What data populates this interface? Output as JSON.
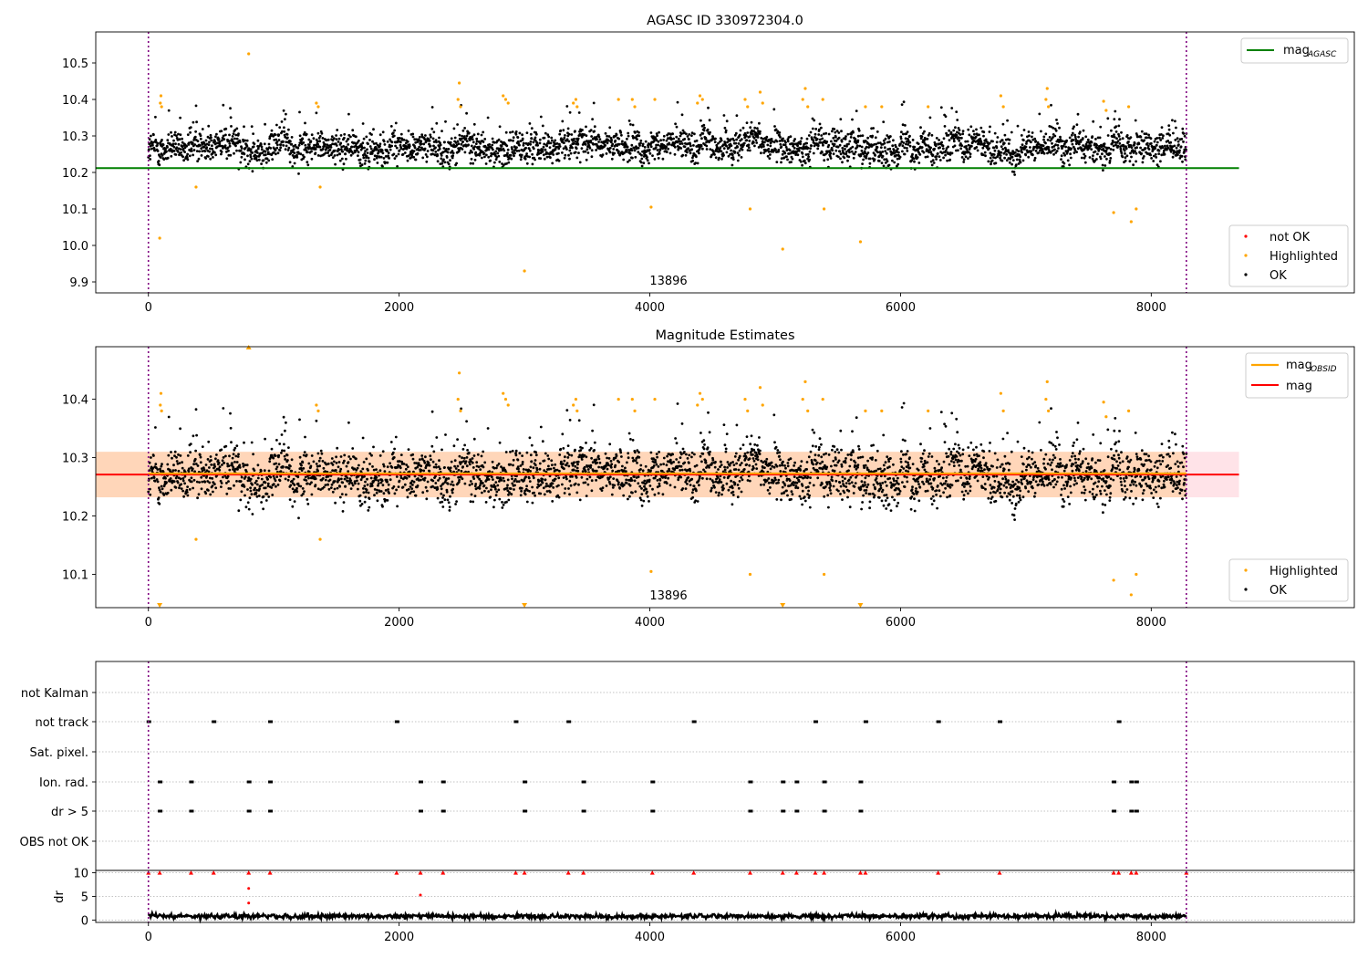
{
  "chart_data": [
    {
      "type": "scatter",
      "title": "AGASC ID 330972304.0",
      "xlabel": "",
      "ylabel": "",
      "xlim": [
        -420,
        9620
      ],
      "ylim": [
        9.87,
        10.585
      ],
      "x_ticks": [
        0,
        2000,
        4000,
        6000,
        8000
      ],
      "y_ticks": [
        9.9,
        10.0,
        10.1,
        10.2,
        10.3,
        10.4,
        10.5
      ],
      "obsid_label": "13896",
      "obsid_label_x": 4000,
      "obsid_boundaries": [
        0,
        8280
      ],
      "reference_lines": [
        {
          "name": "mag_AGASC",
          "value": 10.212,
          "x_range": [
            -420,
            8700
          ],
          "color": "#008000"
        }
      ],
      "legend_lines": [
        {
          "label": "mag",
          "subscript": "AGASC",
          "color": "#008000"
        }
      ],
      "legend_markers": [
        {
          "label": "not OK",
          "color": "#ff0000"
        },
        {
          "label": "Highlighted",
          "color": "#ffa500"
        },
        {
          "label": "OK",
          "color": "#000000"
        }
      ],
      "ok_series": {
        "name": "OK",
        "color": "#000000",
        "x_range": [
          0,
          8280
        ],
        "n_points": 3400,
        "center": 10.27,
        "spread": 0.03
      },
      "highlighted_points": [
        {
          "x": 90,
          "y": 10.02
        },
        {
          "x": 95,
          "y": 10.39
        },
        {
          "x": 100,
          "y": 10.41
        },
        {
          "x": 105,
          "y": 10.38
        },
        {
          "x": 380,
          "y": 10.16
        },
        {
          "x": 800,
          "y": 10.525
        },
        {
          "x": 1370,
          "y": 10.16
        },
        {
          "x": 1340,
          "y": 10.39
        },
        {
          "x": 1355,
          "y": 10.38
        },
        {
          "x": 2480,
          "y": 10.445
        },
        {
          "x": 2470,
          "y": 10.4
        },
        {
          "x": 2490,
          "y": 10.38
        },
        {
          "x": 2830,
          "y": 10.41
        },
        {
          "x": 2850,
          "y": 10.4
        },
        {
          "x": 2870,
          "y": 10.39
        },
        {
          "x": 3000,
          "y": 9.93
        },
        {
          "x": 3390,
          "y": 10.39
        },
        {
          "x": 3410,
          "y": 10.4
        },
        {
          "x": 3420,
          "y": 10.38
        },
        {
          "x": 3750,
          "y": 10.4
        },
        {
          "x": 3860,
          "y": 10.4
        },
        {
          "x": 3880,
          "y": 10.38
        },
        {
          "x": 4010,
          "y": 10.105
        },
        {
          "x": 4040,
          "y": 10.4
        },
        {
          "x": 4400,
          "y": 10.41
        },
        {
          "x": 4420,
          "y": 10.4
        },
        {
          "x": 4380,
          "y": 10.39
        },
        {
          "x": 4760,
          "y": 10.4
        },
        {
          "x": 4780,
          "y": 10.38
        },
        {
          "x": 4800,
          "y": 10.1
        },
        {
          "x": 4880,
          "y": 10.42
        },
        {
          "x": 4900,
          "y": 10.39
        },
        {
          "x": 5060,
          "y": 9.99
        },
        {
          "x": 5240,
          "y": 10.43
        },
        {
          "x": 5220,
          "y": 10.4
        },
        {
          "x": 5260,
          "y": 10.38
        },
        {
          "x": 5380,
          "y": 10.4
        },
        {
          "x": 5390,
          "y": 10.1
        },
        {
          "x": 5680,
          "y": 10.01
        },
        {
          "x": 5720,
          "y": 10.38
        },
        {
          "x": 5850,
          "y": 10.38
        },
        {
          "x": 6220,
          "y": 10.38
        },
        {
          "x": 6800,
          "y": 10.41
        },
        {
          "x": 6820,
          "y": 10.38
        },
        {
          "x": 7170,
          "y": 10.43
        },
        {
          "x": 7160,
          "y": 10.4
        },
        {
          "x": 7180,
          "y": 10.38
        },
        {
          "x": 7620,
          "y": 10.395
        },
        {
          "x": 7640,
          "y": 10.37
        },
        {
          "x": 7700,
          "y": 10.09
        },
        {
          "x": 7820,
          "y": 10.38
        },
        {
          "x": 7840,
          "y": 10.065
        },
        {
          "x": 7880,
          "y": 10.1
        }
      ]
    },
    {
      "type": "scatter",
      "title": "Magnitude Estimates",
      "xlabel": "",
      "ylabel": "",
      "xlim": [
        -420,
        9620
      ],
      "ylim": [
        10.043,
        10.49
      ],
      "x_ticks": [
        0,
        2000,
        4000,
        6000,
        8000
      ],
      "y_ticks": [
        10.1,
        10.2,
        10.3,
        10.4
      ],
      "obsid_label": "13896",
      "obsid_label_x": 4000,
      "obsid_boundaries": [
        0,
        8280
      ],
      "bands": [
        {
          "name": "mag range",
          "low": 10.232,
          "high": 10.31,
          "x_range": [
            -420,
            8700
          ],
          "color": "#ffc0cb"
        },
        {
          "name": "mag_OBSID range",
          "low": 10.232,
          "high": 10.31,
          "x_range": [
            -420,
            8280
          ],
          "color": "#ffa500"
        }
      ],
      "reference_lines": [
        {
          "name": "mag",
          "value": 10.271,
          "x_range": [
            -420,
            8700
          ],
          "color": "#ff0000"
        },
        {
          "name": "mag_OBSID",
          "value": 10.273,
          "x_range": [
            0,
            8280
          ],
          "color": "#ffa500"
        }
      ],
      "legend_lines": [
        {
          "label": "mag",
          "subscript": "OBSID",
          "color": "#ffa500"
        },
        {
          "label": "mag",
          "subscript": "",
          "color": "#ff0000"
        }
      ],
      "legend_markers": [
        {
          "label": "Highlighted",
          "color": "#ffa500"
        },
        {
          "label": "OK",
          "color": "#000000"
        }
      ],
      "ok_series": {
        "name": "OK",
        "color": "#000000",
        "x_range": [
          0,
          8280
        ],
        "n_points": 3400,
        "center": 10.27,
        "spread": 0.03
      },
      "out_of_range_markers": [
        {
          "x": 800,
          "direction": "up"
        },
        {
          "x": 90,
          "direction": "down"
        },
        {
          "x": 3000,
          "direction": "down"
        },
        {
          "x": 5060,
          "direction": "down"
        },
        {
          "x": 5680,
          "direction": "down"
        }
      ]
    },
    {
      "type": "scatter",
      "title": "",
      "xlim": [
        -420,
        9620
      ],
      "x_ticks": [
        0,
        2000,
        4000,
        6000,
        8000
      ],
      "obsid_boundaries": [
        0,
        8280
      ],
      "flag_rows": [
        {
          "label": "not Kalman",
          "x": []
        },
        {
          "label": "not track",
          "x": [
            0,
            520,
            970,
            1980,
            2930,
            3350,
            4350,
            5320,
            5720,
            6300,
            6790,
            7740
          ]
        },
        {
          "label": "Sat. pixel.",
          "x": []
        },
        {
          "label": "Ion. rad.",
          "x": [
            90,
            340,
            800,
            970,
            2170,
            2350,
            3000,
            3470,
            4020,
            4800,
            5060,
            5170,
            5390,
            5680,
            7700,
            7840,
            7880
          ]
        },
        {
          "label": "dr > 5",
          "x": [
            90,
            340,
            800,
            970,
            2170,
            2350,
            3000,
            3470,
            4020,
            4800,
            5060,
            5170,
            5390,
            5680,
            7700,
            7840,
            7880
          ]
        },
        {
          "label": "OBS not OK",
          "x": []
        }
      ]
    },
    {
      "type": "scatter",
      "title": "",
      "ylabel": "dr",
      "xlim": [
        -420,
        9620
      ],
      "ylim": [
        -0.5,
        10.5
      ],
      "x_ticks": [
        0,
        2000,
        4000,
        6000,
        8000
      ],
      "y_ticks": [
        0,
        5,
        10
      ],
      "obsid_boundaries": [
        0,
        8280
      ],
      "clipped_value": 10,
      "clipped_points_x": [
        0,
        90,
        340,
        520,
        800,
        970,
        1980,
        2170,
        2350,
        2930,
        3000,
        3350,
        3470,
        4020,
        4350,
        4800,
        5060,
        5170,
        5320,
        5390,
        5680,
        5720,
        6300,
        6790,
        7700,
        7740,
        7840,
        7880,
        8280
      ],
      "outlier_points": [
        {
          "x": 800,
          "y": 6.7
        },
        {
          "x": 800,
          "y": 3.6
        },
        {
          "x": 2170,
          "y": 5.3
        }
      ],
      "baseline_series": {
        "color": "#000000",
        "x_range": [
          0,
          8280
        ],
        "center": 0.8,
        "spread": 0.5
      }
    }
  ]
}
